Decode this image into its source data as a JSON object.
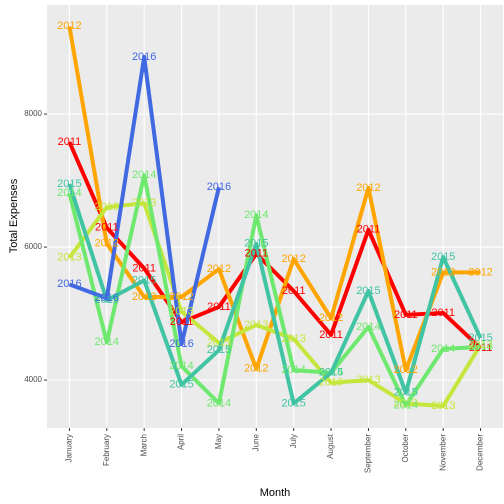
{
  "chart_data": {
    "type": "line",
    "x_label": "Month",
    "y_label": "Total Expenses",
    "categories": [
      "January",
      "February",
      "March",
      "April",
      "May",
      "June",
      "July",
      "August",
      "September",
      "October",
      "November",
      "December"
    ],
    "series": [
      {
        "name": "2011",
        "color": "#ff0000",
        "values": [
          7580,
          6290,
          5680,
          4870,
          5100,
          5900,
          5340,
          4680,
          6260,
          4980,
          5010,
          4480
        ]
      },
      {
        "name": "2012",
        "color": "#ffa500",
        "values": [
          9320,
          6050,
          5250,
          5250,
          5670,
          4170,
          5820,
          4930,
          6890,
          4150,
          5620,
          5620
        ]
      },
      {
        "name": "2013",
        "color": "#c5e63c",
        "values": [
          5840,
          6600,
          6660,
          5030,
          4560,
          4830,
          4620,
          3960,
          4000,
          3650,
          3610,
          4530
        ]
      },
      {
        "name": "2014",
        "color": "#6ee86e",
        "values": [
          6810,
          4570,
          7080,
          4210,
          3650,
          6480,
          4150,
          4110,
          4800,
          3620,
          4470,
          4500
        ]
      },
      {
        "name": "2015",
        "color": "#40c4a4",
        "values": [
          6950,
          5200,
          5500,
          3930,
          4450,
          6050,
          3650,
          4110,
          5340,
          3810,
          5850,
          4630
        ]
      },
      {
        "name": "2016",
        "color": "#4169e1",
        "values": [
          5440,
          5230,
          8860,
          4540,
          6900,
          null,
          null,
          null,
          null,
          null,
          null,
          null
        ]
      }
    ],
    "ylim": [
      3280,
      9640
    ],
    "yticks": [
      4000,
      6000,
      8000
    ],
    "grid": true
  }
}
